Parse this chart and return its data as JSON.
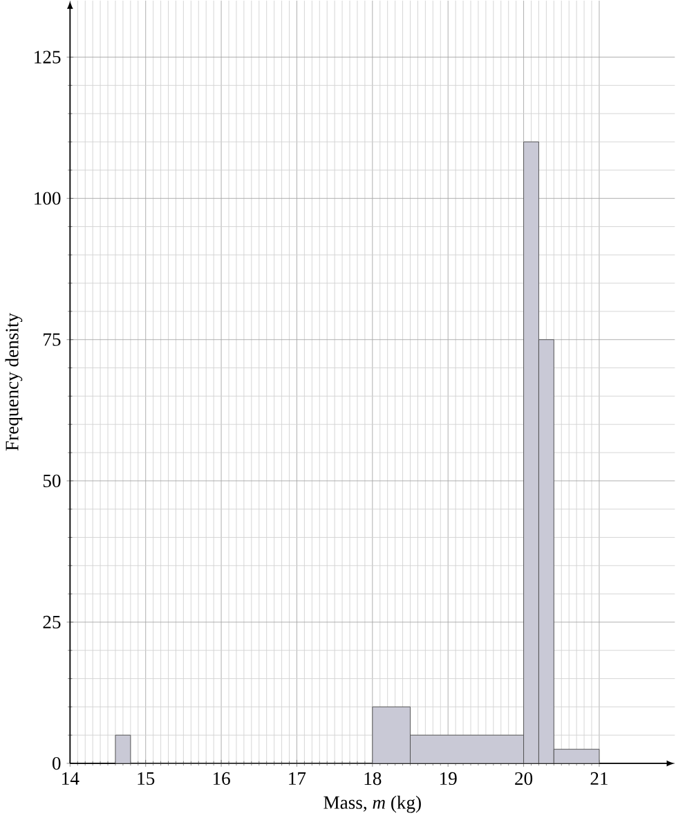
{
  "chart_data": {
    "type": "histogram",
    "xlabel": "Mass, *m* (kg)",
    "ylabel": "Frequency density",
    "bins": [
      14.6,
      14.8,
      18,
      18.5,
      20,
      20.2,
      20.4,
      21
    ],
    "values": [
      5,
      0,
      10,
      5,
      110,
      75,
      2.5
    ],
    "color": "#c9c9d6",
    "xlim": [
      14,
      22
    ],
    "ylim": [
      0,
      135
    ],
    "xticks": [
      14,
      15,
      16,
      17,
      18,
      19,
      20,
      21
    ],
    "yticks": [
      0,
      25,
      50,
      75,
      100,
      125
    ],
    "grid": true
  }
}
